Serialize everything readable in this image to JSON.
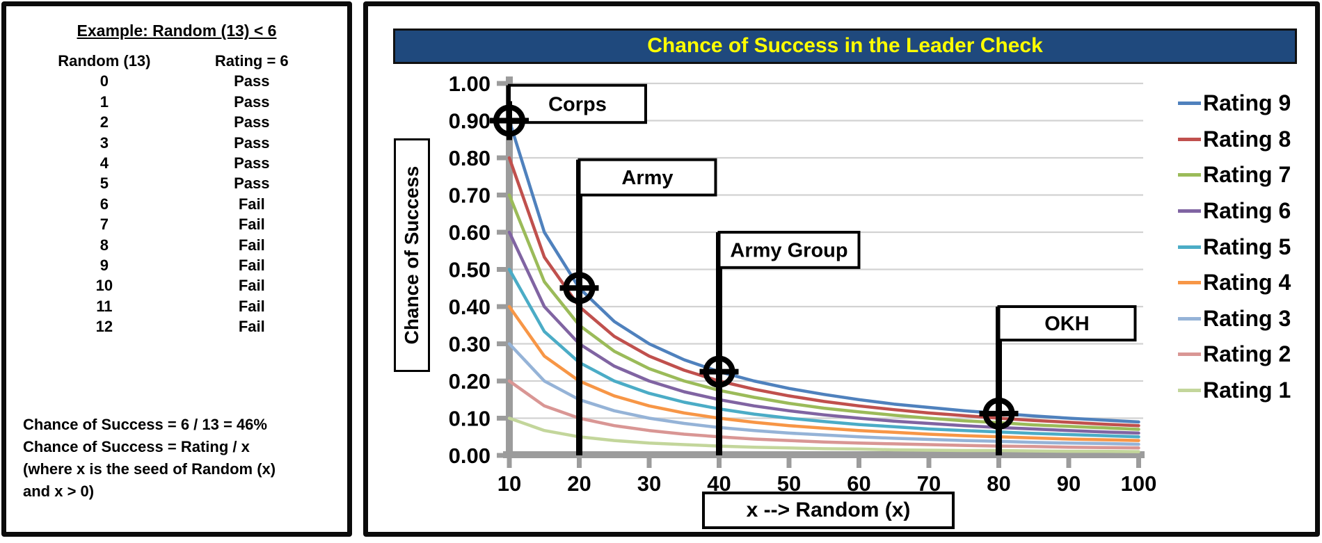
{
  "left_panel": {
    "title": "Example: Random (13) < 6",
    "columns": [
      "Random (13)",
      "Rating = 6"
    ],
    "rows": [
      [
        "0",
        "Pass"
      ],
      [
        "1",
        "Pass"
      ],
      [
        "2",
        "Pass"
      ],
      [
        "3",
        "Pass"
      ],
      [
        "4",
        "Pass"
      ],
      [
        "5",
        "Pass"
      ],
      [
        "6",
        "Fail"
      ],
      [
        "7",
        "Fail"
      ],
      [
        "8",
        "Fail"
      ],
      [
        "9",
        "Fail"
      ],
      [
        "10",
        "Fail"
      ],
      [
        "11",
        "Fail"
      ],
      [
        "12",
        "Fail"
      ]
    ],
    "footer_lines": [
      "Chance of Success = 6 / 13 = 46%",
      "Chance of Success = Rating / x",
      "(where x is the seed of Random (x)",
      "and x > 0)"
    ]
  },
  "right_panel": {
    "title": "Chance of Success in the Leader Check",
    "title_bg": "#1F497D",
    "title_color": "#FFFF00"
  },
  "chart_data": {
    "type": "line",
    "title": "Chance of Success in the Leader Check",
    "xlabel": "x --> Random (x)",
    "ylabel": "Chance of Success",
    "xlim": [
      10,
      100
    ],
    "ylim": [
      0,
      1
    ],
    "x_ticks": [
      10,
      20,
      30,
      40,
      50,
      60,
      70,
      80,
      90,
      100
    ],
    "y_ticks": [
      "1.00",
      "0.90",
      "0.80",
      "0.70",
      "0.60",
      "0.50",
      "0.40",
      "0.30",
      "0.20",
      "0.10",
      "0.00"
    ],
    "grid": "horizontal",
    "legend_position": "right",
    "axis_color": "#9C9C9C",
    "grid_color": "#D2D2D2",
    "x": [
      10,
      15,
      20,
      25,
      30,
      35,
      40,
      45,
      50,
      55,
      60,
      65,
      70,
      75,
      80,
      85,
      90,
      95,
      100
    ],
    "series": [
      {
        "name": "Rating 9",
        "color": "#4F81BD",
        "values": [
          0.9,
          0.6,
          0.45,
          0.36,
          0.3,
          0.257,
          0.225,
          0.2,
          0.18,
          0.164,
          0.15,
          0.138,
          0.129,
          0.12,
          0.113,
          0.106,
          0.1,
          0.095,
          0.09
        ]
      },
      {
        "name": "Rating 8",
        "color": "#C0504D",
        "values": [
          0.8,
          0.533,
          0.4,
          0.32,
          0.267,
          0.229,
          0.2,
          0.178,
          0.16,
          0.145,
          0.133,
          0.123,
          0.114,
          0.107,
          0.1,
          0.094,
          0.089,
          0.084,
          0.08
        ]
      },
      {
        "name": "Rating 7",
        "color": "#9BBB59",
        "values": [
          0.7,
          0.467,
          0.35,
          0.28,
          0.233,
          0.2,
          0.175,
          0.156,
          0.14,
          0.127,
          0.117,
          0.108,
          0.1,
          0.093,
          0.088,
          0.082,
          0.078,
          0.074,
          0.07
        ]
      },
      {
        "name": "Rating 6",
        "color": "#8064A2",
        "values": [
          0.6,
          0.4,
          0.3,
          0.24,
          0.2,
          0.171,
          0.15,
          0.133,
          0.12,
          0.109,
          0.1,
          0.092,
          0.086,
          0.08,
          0.075,
          0.071,
          0.067,
          0.063,
          0.06
        ]
      },
      {
        "name": "Rating 5",
        "color": "#4BACC6",
        "values": [
          0.5,
          0.333,
          0.25,
          0.2,
          0.167,
          0.143,
          0.125,
          0.111,
          0.1,
          0.091,
          0.083,
          0.077,
          0.071,
          0.067,
          0.063,
          0.059,
          0.056,
          0.053,
          0.05
        ]
      },
      {
        "name": "Rating 4",
        "color": "#F79646",
        "values": [
          0.4,
          0.267,
          0.2,
          0.16,
          0.133,
          0.114,
          0.1,
          0.089,
          0.08,
          0.073,
          0.067,
          0.062,
          0.057,
          0.053,
          0.05,
          0.047,
          0.044,
          0.042,
          0.04
        ]
      },
      {
        "name": "Rating 3",
        "color": "#95B3D7",
        "values": [
          0.3,
          0.2,
          0.15,
          0.12,
          0.1,
          0.086,
          0.075,
          0.067,
          0.06,
          0.055,
          0.05,
          0.046,
          0.043,
          0.04,
          0.038,
          0.035,
          0.033,
          0.032,
          0.03
        ]
      },
      {
        "name": "Rating 2",
        "color": "#D99694",
        "values": [
          0.2,
          0.133,
          0.1,
          0.08,
          0.067,
          0.057,
          0.05,
          0.044,
          0.04,
          0.036,
          0.033,
          0.031,
          0.029,
          0.027,
          0.025,
          0.024,
          0.022,
          0.021,
          0.02
        ]
      },
      {
        "name": "Rating 1",
        "color": "#C3D69B",
        "values": [
          0.1,
          0.067,
          0.05,
          0.04,
          0.033,
          0.029,
          0.025,
          0.022,
          0.02,
          0.018,
          0.017,
          0.015,
          0.014,
          0.013,
          0.013,
          0.012,
          0.011,
          0.011,
          0.01
        ]
      }
    ],
    "annotations": [
      {
        "label": "Corps",
        "x": 10,
        "marker_y": 0.9,
        "line": [
          0.895,
          0.995
        ],
        "box": {
          "x2": 29.5,
          "y1": 0.895,
          "y2": 0.995
        }
      },
      {
        "label": "Army",
        "x": 20,
        "marker_y": 0.45,
        "line": [
          0,
          0.795
        ],
        "box": {
          "x2": 39.5,
          "y1": 0.7,
          "y2": 0.795
        }
      },
      {
        "label": "Army Group",
        "x": 40,
        "marker_y": 0.225,
        "line": [
          0,
          0.6
        ],
        "box": {
          "x2": 60,
          "y1": 0.505,
          "y2": 0.6
        }
      },
      {
        "label": "OKH",
        "x": 80,
        "marker_y": 0.1125,
        "line": [
          0,
          0.4
        ],
        "box": {
          "x2": 99.5,
          "y1": 0.31,
          "y2": 0.4
        }
      }
    ]
  }
}
